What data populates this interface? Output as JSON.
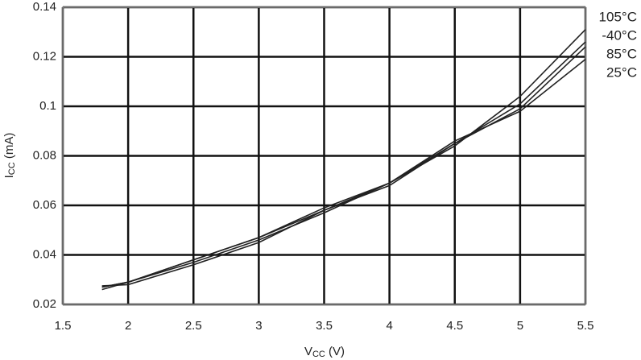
{
  "chart_data": {
    "type": "line",
    "x_label": {
      "main": "V",
      "sub": "CC",
      "unit": " (V)"
    },
    "y_label": {
      "main": "I",
      "sub": "CC",
      "unit": " (mA)"
    },
    "x": [
      1.8,
      2,
      2.5,
      3,
      3.5,
      4,
      4.5,
      5,
      5.5
    ],
    "series": [
      {
        "name": "105°C",
        "color": "#222222",
        "values": [
          0.027,
          0.029,
          0.037,
          0.046,
          0.057,
          0.069,
          0.084,
          0.104,
          0.131
        ]
      },
      {
        "name": "-40°C",
        "color": "#222222",
        "values": [
          0.0275,
          0.028,
          0.036,
          0.045,
          0.058,
          0.068,
          0.085,
          0.101,
          0.126
        ]
      },
      {
        "name": "85°C",
        "color": "#222222",
        "values": [
          0.027,
          0.029,
          0.038,
          0.047,
          0.058,
          0.069,
          0.085,
          0.099,
          0.124
        ]
      },
      {
        "name": "25°C",
        "color": "#222222",
        "values": [
          0.026,
          0.029,
          0.038,
          0.047,
          0.059,
          0.069,
          0.086,
          0.098,
          0.119
        ]
      }
    ],
    "xlim": [
      1.5,
      5.5
    ],
    "xticks": [
      1.5,
      2,
      2.5,
      3,
      3.5,
      4,
      4.5,
      5,
      5.5
    ],
    "ylim": [
      0.02,
      0.14
    ],
    "yticks": [
      0.02,
      0.04,
      0.06,
      0.08,
      0.1,
      0.12,
      0.14
    ],
    "grid": true
  }
}
